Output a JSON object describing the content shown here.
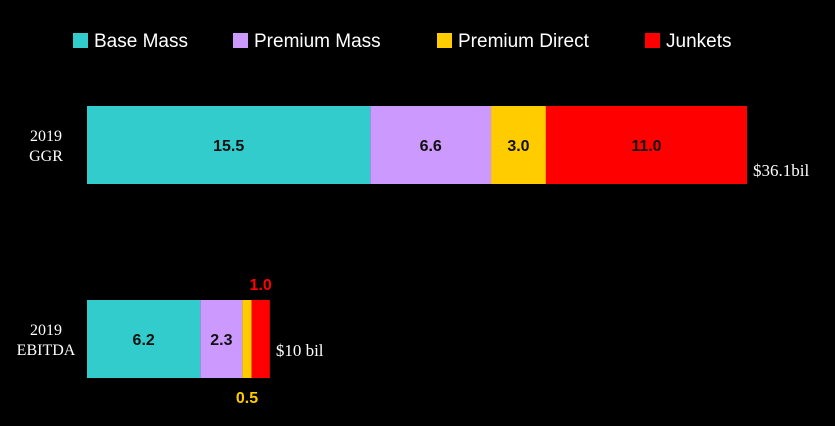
{
  "chart_data": {
    "type": "bar",
    "orientation": "horizontal",
    "stacked": true,
    "legend_position": "top",
    "grid": false,
    "series": [
      {
        "name": "Base Mass",
        "color": "#33cccc"
      },
      {
        "name": "Premium Mass",
        "color": "#cc99ff"
      },
      {
        "name": "Premium Direct",
        "color": "#ffcc00"
      },
      {
        "name": "Junkets",
        "color": "#ff0000"
      }
    ],
    "rows": [
      {
        "label_lines": [
          "2019",
          "GGR"
        ],
        "values": [
          15.5,
          6.6,
          3.0,
          11.0
        ],
        "value_labels": [
          "15.5",
          "6.6",
          "3.0",
          "11.0"
        ],
        "total_label": "$36.1bil"
      },
      {
        "label_lines": [
          "2019",
          "EBITDA"
        ],
        "values": [
          6.2,
          2.3,
          0.5,
          1.0
        ],
        "value_labels": [
          "6.2",
          "2.3",
          "0.5",
          "1.0"
        ],
        "total_label": "$10 bil"
      }
    ]
  },
  "colors": {
    "background": "#000000",
    "text": "#ffffff",
    "inner_label": "#111111"
  }
}
